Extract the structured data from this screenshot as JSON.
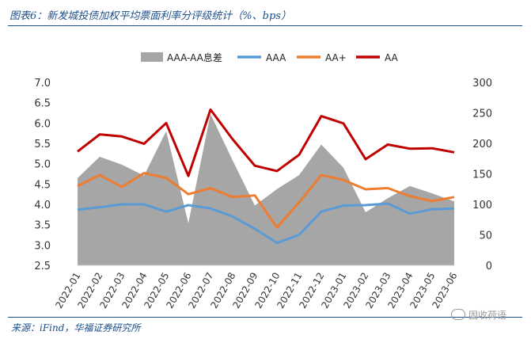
{
  "header": {
    "title": "图表6：新发城投债加权平均票面利率分评级统计（%、bps）"
  },
  "footer": {
    "source": "来源：iFind，华福证券研究所",
    "watermark": "固收荷语"
  },
  "chart_data": {
    "type": "line",
    "categories": [
      "2022-01",
      "2022-02",
      "2022-03",
      "2022-04",
      "2022-05",
      "2022-06",
      "2022-07",
      "2022-08",
      "2022-09",
      "2022-10",
      "2022-11",
      "2022-12",
      "2023-01",
      "2023-02",
      "2023-03",
      "2023-04",
      "2023-05",
      "2023-06"
    ],
    "left_axis": {
      "min": 2.5,
      "max": 7.0,
      "ticks": [
        "2.5",
        "3.0",
        "3.5",
        "4.0",
        "4.5",
        "5.0",
        "5.5",
        "6.0",
        "6.5",
        "7.0"
      ]
    },
    "right_axis": {
      "min": 0,
      "max": 300,
      "ticks": [
        "0",
        "50",
        "100",
        "150",
        "200",
        "250",
        "300"
      ]
    },
    "legend_position": "top",
    "series": [
      {
        "name": "AAA-AA息差",
        "type": "area",
        "axis": "right",
        "color": "#a6a6a6",
        "values": [
          143,
          178,
          165,
          147,
          220,
          69,
          248,
          172,
          98,
          125,
          148,
          198,
          160,
          87,
          110,
          130,
          118,
          105
        ]
      },
      {
        "name": "AAA",
        "type": "line",
        "axis": "left",
        "color": "#5b9bd5",
        "values": [
          3.87,
          3.93,
          4.0,
          4.0,
          3.82,
          3.98,
          3.9,
          3.7,
          3.4,
          3.05,
          3.25,
          3.82,
          3.97,
          3.98,
          4.02,
          3.77,
          3.88,
          3.9
        ]
      },
      {
        "name": "AA+",
        "type": "line",
        "axis": "left",
        "color": "#ed7d31",
        "values": [
          4.45,
          4.72,
          4.43,
          4.77,
          4.65,
          4.25,
          4.4,
          4.18,
          4.22,
          3.43,
          4.05,
          4.72,
          4.6,
          4.37,
          4.4,
          4.2,
          4.08,
          4.18
        ]
      },
      {
        "name": "AA",
        "type": "line",
        "axis": "left",
        "color": "#c00000",
        "values": [
          5.3,
          5.72,
          5.67,
          5.49,
          6.0,
          4.7,
          6.33,
          5.6,
          4.95,
          4.82,
          5.22,
          6.17,
          5.99,
          5.11,
          5.47,
          5.37,
          5.38,
          5.28
        ]
      }
    ]
  }
}
